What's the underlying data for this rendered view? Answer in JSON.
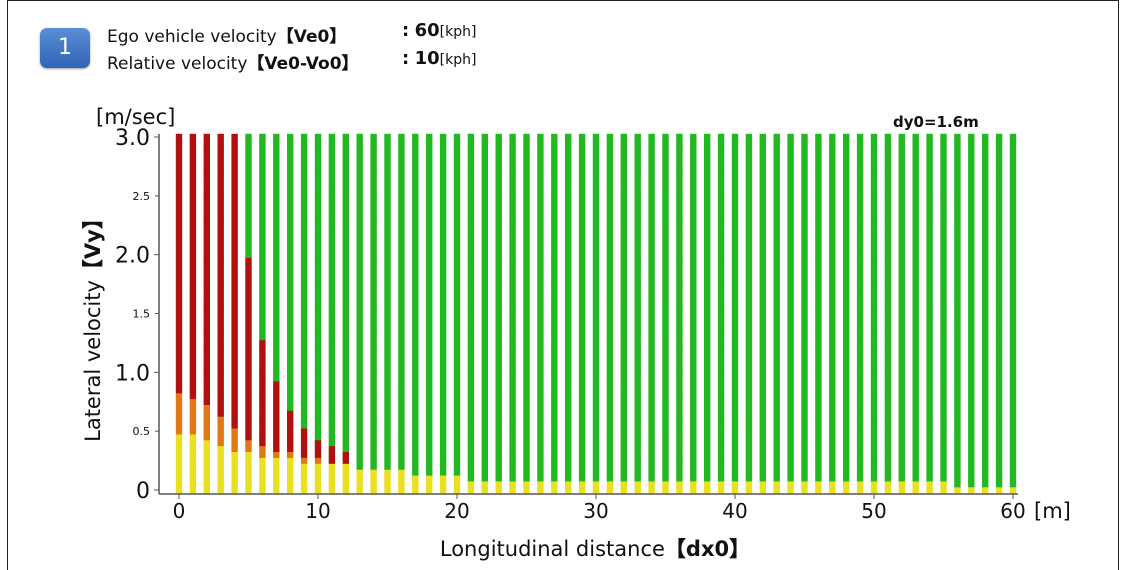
{
  "header": {
    "badge": "1",
    "rows": [
      {
        "label": "Ego vehicle velocity",
        "code": "【Ve0】",
        "colon": ":",
        "value": "60",
        "unit": "[kph]"
      },
      {
        "label": "Relative velocity",
        "code": "【Ve0-Vo0】",
        "colon": ":",
        "value": "10",
        "unit": "[kph]"
      }
    ]
  },
  "chart_data": {
    "type": "scatter",
    "annotation": "dy0=1.6m",
    "xlabel": "Longitudinal distance",
    "xlabel_code": "【dx0】",
    "x_unit": "[m]",
    "ylabel": "Lateral velocity",
    "ylabel_code": "【Vy】",
    "y_unit": "[m/sec]",
    "xlim": [
      0,
      60
    ],
    "ylim": [
      0,
      3.0
    ],
    "x_ticks": [
      "0",
      "10",
      "20",
      "30",
      "40",
      "50",
      "60"
    ],
    "x_tick_values": [
      0,
      10,
      20,
      30,
      40,
      50,
      60
    ],
    "y_ticks_major": [
      "0",
      "1.0",
      "2.0",
      "3.0"
    ],
    "y_tick_major_values": [
      0,
      1.0,
      2.0,
      3.0
    ],
    "y_ticks_minor": [
      "0.5",
      "1.5",
      "2.5"
    ],
    "y_tick_minor_values": [
      0.5,
      1.5,
      2.5
    ],
    "colors": {
      "red": "#b01010",
      "orange": "#e07818",
      "yellow": "#e8e020",
      "green": "#22b822"
    },
    "x_step": 1,
    "y_step": 0.05,
    "series": [
      {
        "description": "stacked point colors per longitudinal distance column",
        "x": [
          0,
          1,
          2,
          3,
          4,
          5,
          6,
          7,
          8,
          9,
          10,
          11,
          12,
          13,
          14,
          15,
          16,
          17,
          18,
          19,
          20,
          25,
          30,
          35,
          40,
          45,
          50,
          55,
          56,
          60
        ],
        "yellow_top": [
          0.45,
          0.45,
          0.4,
          0.35,
          0.3,
          0.3,
          0.25,
          0.25,
          0.25,
          0.2,
          0.2,
          0.2,
          0.2,
          0.15,
          0.15,
          0.15,
          0.15,
          0.1,
          0.1,
          0.1,
          0.1,
          0.05,
          0.05,
          0.05,
          0.05,
          0.05,
          0.05,
          0.05,
          0,
          0
        ],
        "orange_top": [
          0.8,
          0.75,
          0.7,
          0.6,
          0.5,
          0.4,
          0.35,
          0.3,
          0.3,
          0.25,
          0.25,
          0.2,
          0.2,
          0.15,
          0.15,
          0.15,
          0.15,
          0.1,
          0.1,
          0.1,
          0.1,
          0.05,
          0.05,
          0.05,
          0.05,
          0.05,
          0.05,
          0.05,
          0,
          0
        ],
        "red_top": [
          3.0,
          3.0,
          3.0,
          3.0,
          3.0,
          1.95,
          1.25,
          0.9,
          0.65,
          0.5,
          0.4,
          0.35,
          0.3,
          0.15,
          0.15,
          0.15,
          0.15,
          0.1,
          0.1,
          0.1,
          0.1,
          0.05,
          0.05,
          0.05,
          0.05,
          0.05,
          0.05,
          0.05,
          0,
          0
        ]
      }
    ]
  }
}
